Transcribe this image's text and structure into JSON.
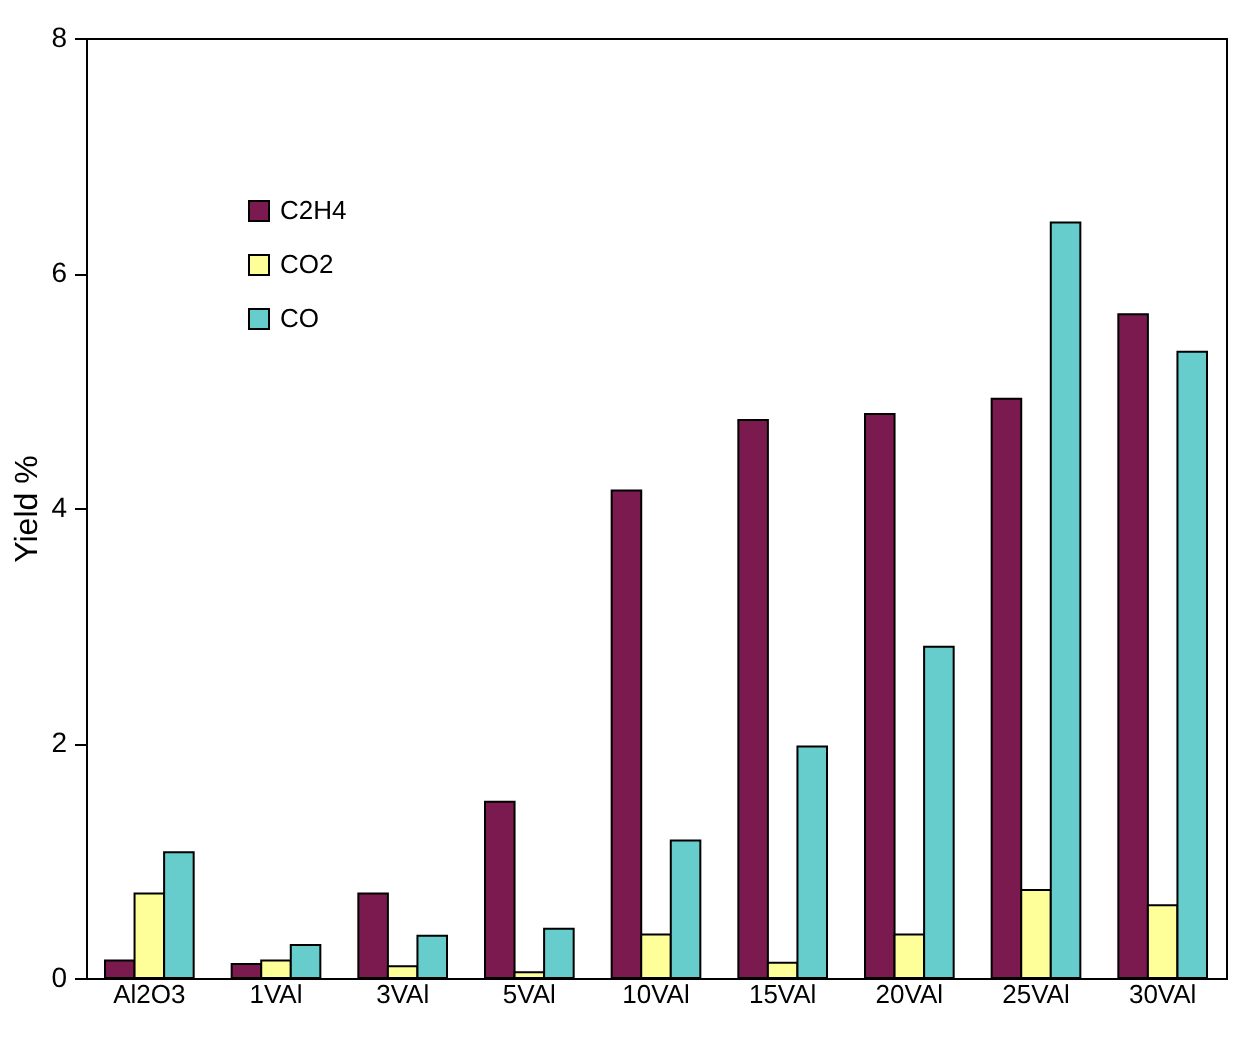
{
  "chart_data": {
    "type": "bar",
    "ylabel": "Yield %",
    "categories": [
      "Al2O3",
      "1VAl",
      "3VAl",
      "5VAl",
      "10VAl",
      "15VAl",
      "20VAl",
      "25VAl",
      "30VAl"
    ],
    "series": [
      {
        "name": "C2H4",
        "color": "#7b1a4e",
        "values": [
          0.15,
          0.12,
          0.72,
          1.5,
          4.15,
          4.75,
          4.8,
          4.93,
          5.65
        ]
      },
      {
        "name": "CO2",
        "color": "#ffff99",
        "values": [
          0.72,
          0.15,
          0.1,
          0.05,
          0.37,
          0.13,
          0.37,
          0.75,
          0.62
        ]
      },
      {
        "name": "CO",
        "color": "#66cccc",
        "values": [
          1.07,
          0.28,
          0.36,
          0.42,
          1.17,
          1.97,
          2.82,
          6.43,
          5.33
        ]
      }
    ],
    "ylim": [
      0,
      8
    ],
    "yticks": [
      0,
      2,
      4,
      6,
      8
    ],
    "grid": false,
    "legend": "top left"
  }
}
